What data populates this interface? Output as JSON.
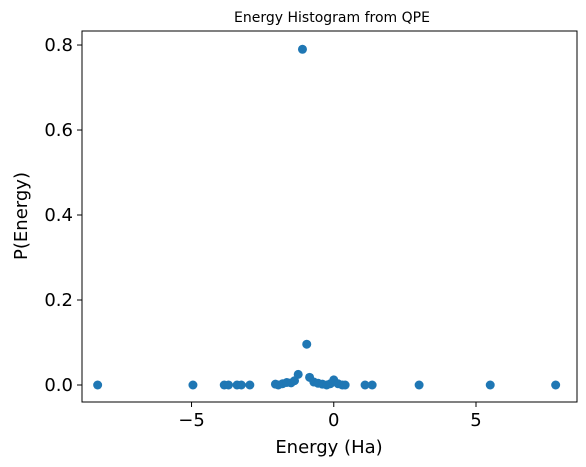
{
  "chart_data": {
    "type": "scatter",
    "title": "Energy Histogram from QPE",
    "xlabel": "Energy (Ha)",
    "ylabel": "P(Energy)",
    "xlim": [
      -8.85,
      8.55
    ],
    "ylim": [
      -0.04,
      0.833
    ],
    "x_ticks": [
      {
        "value": -5,
        "label": "−5"
      },
      {
        "value": 0,
        "label": "0"
      },
      {
        "value": 5,
        "label": "5"
      }
    ],
    "y_ticks": [
      {
        "value": 0.0,
        "label": "0.0"
      },
      {
        "value": 0.2,
        "label": "0.2"
      },
      {
        "value": 0.4,
        "label": "0.4"
      },
      {
        "value": 0.6,
        "label": "0.6"
      },
      {
        "value": 0.8,
        "label": "0.8"
      }
    ],
    "grid": false,
    "marker_color": "#1f77b4",
    "points": [
      {
        "x": -8.3,
        "y": 0.0
      },
      {
        "x": -4.95,
        "y": 0.0
      },
      {
        "x": -3.85,
        "y": 0.0
      },
      {
        "x": -3.7,
        "y": 0.0
      },
      {
        "x": -3.4,
        "y": 0.0
      },
      {
        "x": -3.25,
        "y": 0.0
      },
      {
        "x": -2.95,
        "y": 0.0
      },
      {
        "x": -2.05,
        "y": 0.002
      },
      {
        "x": -1.95,
        "y": 0.0
      },
      {
        "x": -1.8,
        "y": 0.003
      },
      {
        "x": -1.65,
        "y": 0.006
      },
      {
        "x": -1.5,
        "y": 0.005
      },
      {
        "x": -1.38,
        "y": 0.01
      },
      {
        "x": -1.25,
        "y": 0.025
      },
      {
        "x": -1.1,
        "y": 0.79
      },
      {
        "x": -0.95,
        "y": 0.096
      },
      {
        "x": -0.85,
        "y": 0.018
      },
      {
        "x": -0.7,
        "y": 0.007
      },
      {
        "x": -0.55,
        "y": 0.004
      },
      {
        "x": -0.4,
        "y": 0.002
      },
      {
        "x": -0.25,
        "y": 0.0
      },
      {
        "x": -0.12,
        "y": 0.003
      },
      {
        "x": 0.0,
        "y": 0.012
      },
      {
        "x": 0.15,
        "y": 0.003
      },
      {
        "x": 0.3,
        "y": 0.0
      },
      {
        "x": 0.4,
        "y": 0.0
      },
      {
        "x": 1.1,
        "y": 0.0
      },
      {
        "x": 1.35,
        "y": 0.0
      },
      {
        "x": 3.0,
        "y": 0.0
      },
      {
        "x": 5.5,
        "y": 0.0
      },
      {
        "x": 7.8,
        "y": 0.0
      }
    ]
  }
}
